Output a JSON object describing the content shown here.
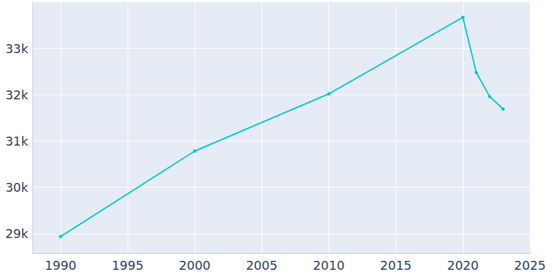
{
  "chart_data": {
    "type": "line",
    "x": [
      1990,
      2000,
      2010,
      2020,
      2021,
      2022,
      2023
    ],
    "values": [
      28940,
      30784,
      32019,
      33669,
      32480,
      31959,
      31691
    ],
    "color": "#0ec8c8",
    "marker": "circle",
    "xlim": [
      1987.9,
      2025
    ],
    "xticks": [
      1990,
      1995,
      2000,
      2005,
      2010,
      2015,
      2020,
      2025
    ],
    "ylim": [
      28580,
      34000
    ],
    "yticks": [
      {
        "value": 29000,
        "label": "29k"
      },
      {
        "value": 30000,
        "label": "30k"
      },
      {
        "value": 31000,
        "label": "31k"
      },
      {
        "value": 32000,
        "label": "32k"
      },
      {
        "value": 33000,
        "label": "33k"
      }
    ],
    "grid": true
  }
}
